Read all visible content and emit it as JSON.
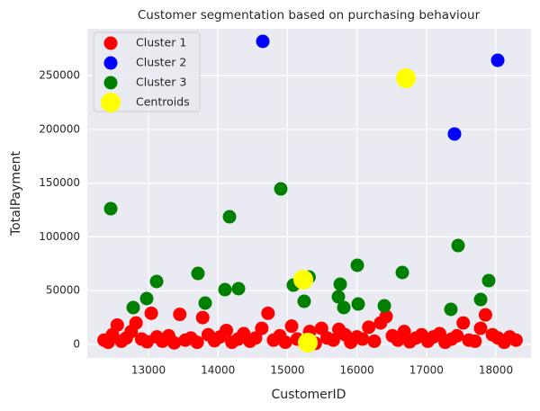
{
  "chart_data": {
    "type": "scatter",
    "title": "Customer segmentation based on purchasing behaviour",
    "x_label": "CustomerID",
    "y_label": "TotalPayment",
    "xlim": [
      12119,
      18505
    ],
    "ylim": [
      -12540,
      293500
    ],
    "xticks": [
      13000,
      14000,
      15000,
      16000,
      17000,
      18000
    ],
    "yticks": [
      0,
      50000,
      100000,
      150000,
      200000,
      250000
    ],
    "grid": true,
    "legend": "upper left",
    "series": [
      {
        "name": "Cluster 1",
        "color": "#ff0000",
        "x": [
          12360,
          12420,
          12480,
          12550,
          12610,
          12680,
          12750,
          12820,
          12900,
          12980,
          13040,
          13120,
          13200,
          13290,
          13370,
          13450,
          13530,
          13610,
          13700,
          13780,
          13860,
          13950,
          14030,
          14120,
          14200,
          14290,
          14370,
          14460,
          14540,
          14630,
          14720,
          14800,
          14890,
          14970,
          15060,
          15140,
          15230,
          15320,
          15400,
          15490,
          15570,
          15660,
          15740,
          15830,
          15910,
          16000,
          16080,
          16170,
          16250,
          16340,
          16420,
          16510,
          16590,
          16680,
          16760,
          16850,
          16930,
          17020,
          17100,
          17190,
          17270,
          17360,
          17440,
          17530,
          17610,
          17700,
          17780,
          17850,
          17950,
          18030,
          18120,
          18200,
          18290
        ],
        "values": [
          4000,
          2000,
          9000,
          18000,
          3000,
          6000,
          12000,
          20000,
          5000,
          2500,
          29000,
          7000,
          3000,
          8000,
          1500,
          28000,
          4000,
          6000,
          2000,
          25000,
          9000,
          3500,
          7000,
          13000,
          2000,
          5000,
          10000,
          3000,
          6000,
          15000,
          29000,
          4000,
          8000,
          2000,
          17000,
          5000,
          3000,
          12000,
          1000,
          15000,
          6000,
          4000,
          14000,
          9000,
          2000,
          7000,
          5000,
          16000,
          3000,
          20000,
          26000,
          8000,
          4000,
          12000,
          2500,
          6000,
          9000,
          3000,
          7000,
          10000,
          2000,
          5000,
          8000,
          20000,
          4000,
          3000,
          15000,
          27500,
          9000,
          6000,
          2000,
          7000,
          4000
        ]
      },
      {
        "name": "Cluster 2",
        "color": "#0000ff",
        "x": [
          14645,
          17404,
          18026
        ],
        "values": [
          281800,
          195700,
          264200
        ]
      },
      {
        "name": "Cluster 3",
        "color": "#008000",
        "x": [
          12456,
          13712,
          14166,
          14904,
          13117,
          12780,
          12974,
          13816,
          14101,
          14295,
          15085,
          15240,
          15311,
          15759,
          15733,
          15811,
          16018,
          16005,
          16394,
          16653,
          17456,
          17352,
          17780,
          17896
        ],
        "values": [
          126250,
          66050,
          118730,
          144650,
          58530,
          34280,
          42640,
          38460,
          51000,
          51840,
          55180,
          40130,
          62710,
          56020,
          44310,
          34280,
          37620,
          73580,
          35950,
          66890,
          91970,
          32610,
          41800,
          59360
        ]
      },
      {
        "name": "Centroids",
        "color": "#ffff00",
        "x": [
          16705,
          15228,
          15293
        ],
        "values": [
          247500,
          60200,
          1700
        ]
      }
    ]
  }
}
